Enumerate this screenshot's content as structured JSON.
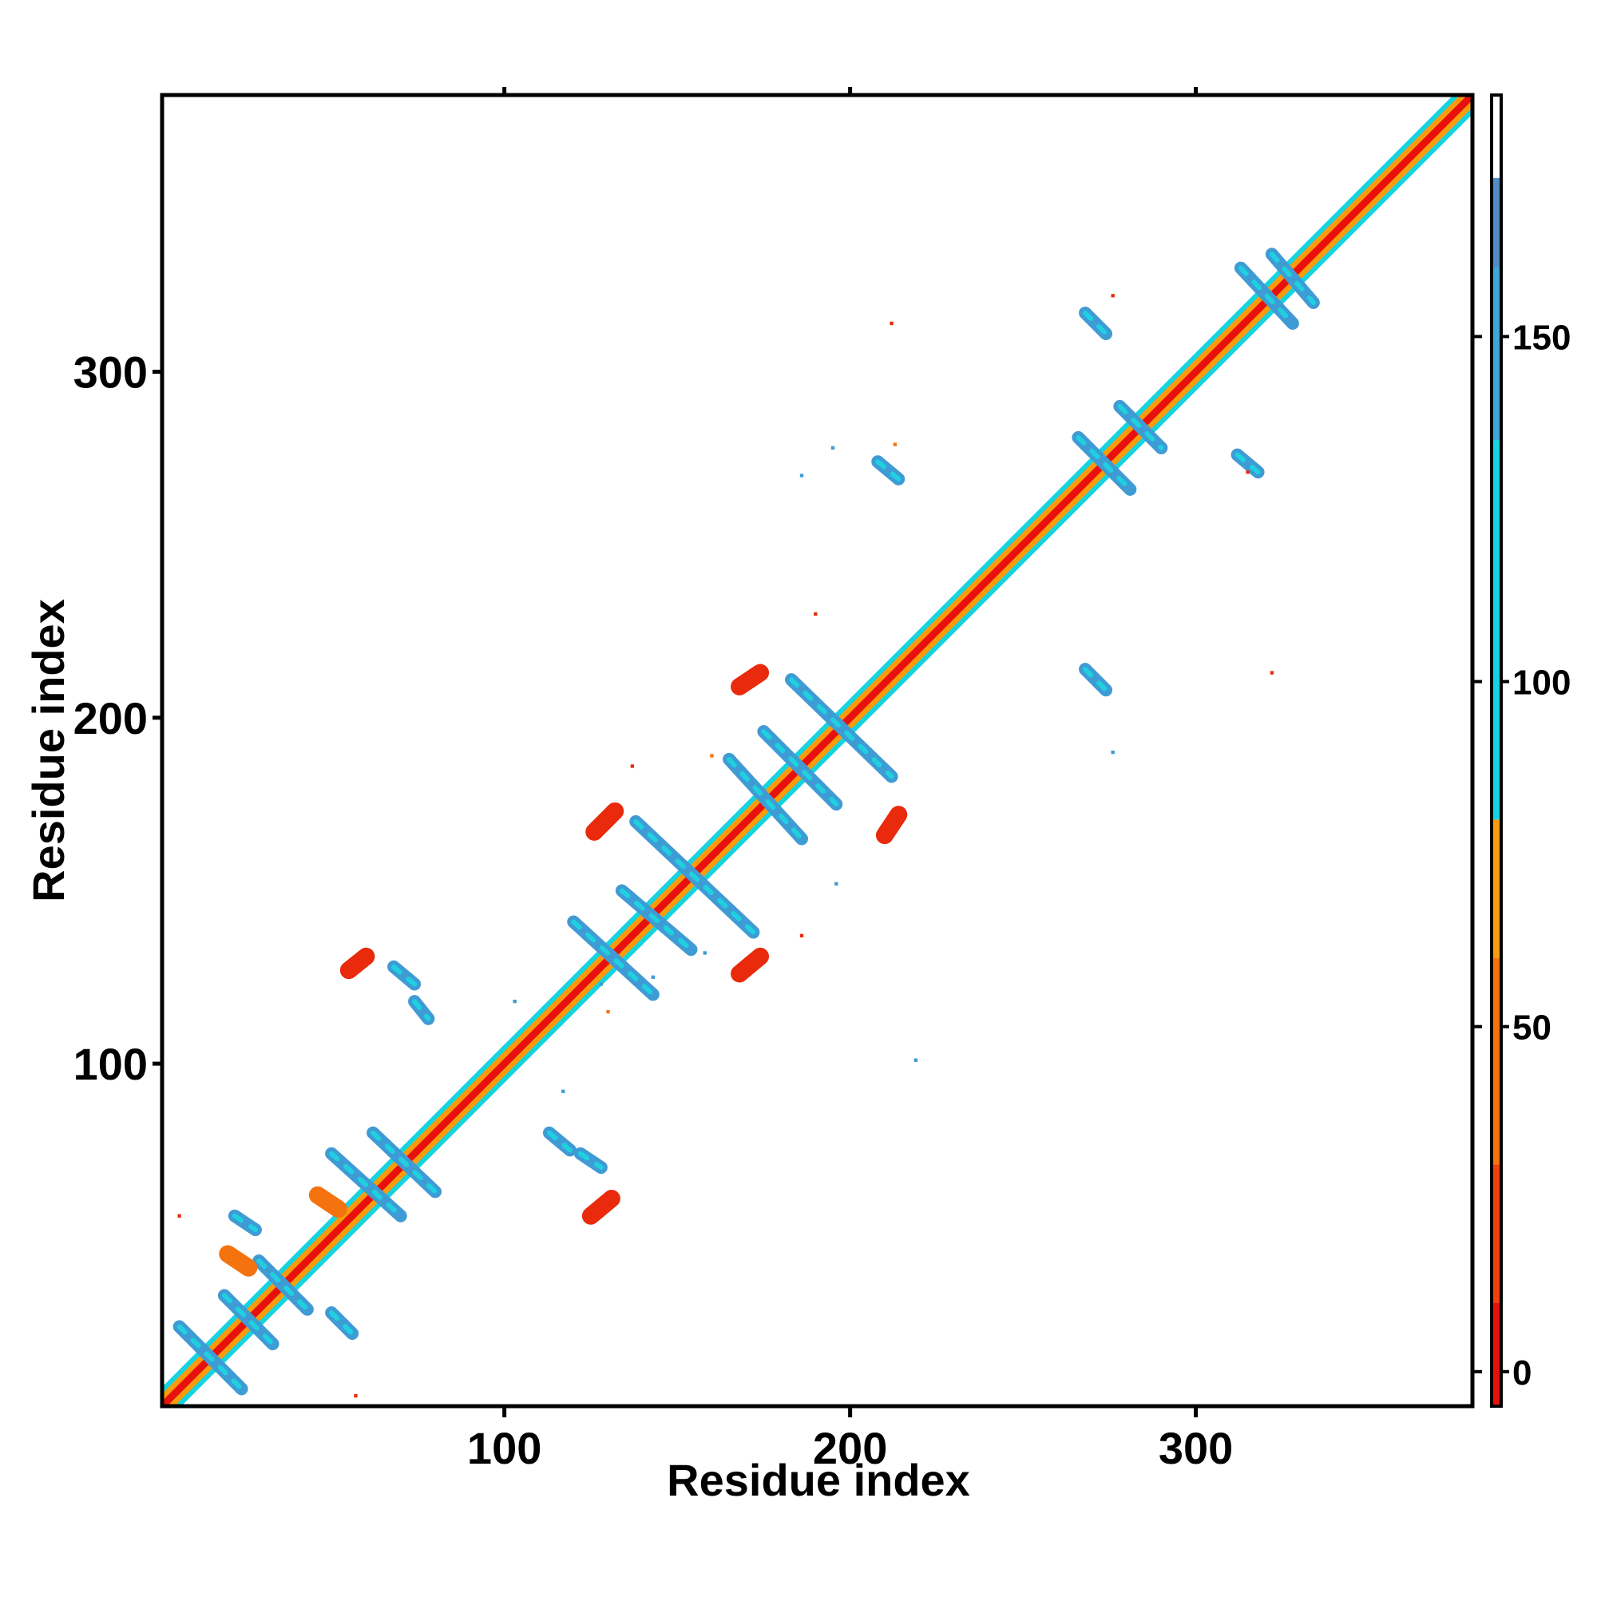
{
  "chart_data": {
    "type": "heatmap",
    "title": "",
    "xlabel": "Residue index",
    "ylabel": "Residue index",
    "xlim": [
      1,
      380
    ],
    "ylim": [
      1,
      380
    ],
    "x_ticks": [
      100,
      200,
      300
    ],
    "y_ticks": [
      100,
      200,
      300
    ],
    "grid": false,
    "legend": "right",
    "colorbar": {
      "ticks": [
        0,
        50,
        100,
        150
      ],
      "range": [
        -5,
        185
      ],
      "bands": [
        {
          "from": -5,
          "to": 10,
          "color": "#e8100d"
        },
        {
          "from": 10,
          "to": 30,
          "color": "#f2400e"
        },
        {
          "from": 30,
          "to": 60,
          "color": "#f4730f"
        },
        {
          "from": 60,
          "to": 80,
          "color": "#f99b0b"
        },
        {
          "from": 80,
          "to": 135,
          "color": "#16d3e0"
        },
        {
          "from": 135,
          "to": 160,
          "color": "#3fa6d6"
        },
        {
          "from": 160,
          "to": 173,
          "color": "#4f8dc4"
        },
        {
          "from": 173,
          "to": 185,
          "color": "#ffffff"
        }
      ]
    },
    "colors": {
      "diag_core": "#e8100d",
      "diag_edge": "#f99b0b",
      "diag_outer": "#16d3e0",
      "strand": "#3f9bd4",
      "strand_light": "#1fd0e0",
      "orange": "#f4730f",
      "red": "#e92a0c"
    },
    "segments": [
      {
        "x1": 6,
        "y1": 24,
        "x2": 24,
        "y2": 6,
        "kind": "strand"
      },
      {
        "x1": 19,
        "y1": 33,
        "x2": 33,
        "y2": 19,
        "kind": "strand"
      },
      {
        "x1": 29,
        "y1": 43,
        "x2": 43,
        "y2": 29,
        "kind": "strand"
      },
      {
        "x1": 22,
        "y1": 56,
        "x2": 28,
        "y2": 52,
        "kind": "strand"
      },
      {
        "x1": 50,
        "y1": 28,
        "x2": 56,
        "y2": 22,
        "kind": "strand"
      },
      {
        "x1": 50,
        "y1": 74,
        "x2": 70,
        "y2": 56,
        "kind": "strand"
      },
      {
        "x1": 62,
        "y1": 80,
        "x2": 80,
        "y2": 63,
        "kind": "strand"
      },
      {
        "x1": 113,
        "y1": 80,
        "x2": 119,
        "y2": 75,
        "kind": "strand"
      },
      {
        "x1": 122,
        "y1": 74,
        "x2": 128,
        "y2": 70,
        "kind": "strand"
      },
      {
        "x1": 68,
        "y1": 128,
        "x2": 74,
        "y2": 123,
        "kind": "strand"
      },
      {
        "x1": 74,
        "y1": 118,
        "x2": 78,
        "y2": 113,
        "kind": "strand"
      },
      {
        "x1": 120,
        "y1": 141,
        "x2": 143,
        "y2": 120,
        "kind": "strand"
      },
      {
        "x1": 134,
        "y1": 150,
        "x2": 154,
        "y2": 133,
        "kind": "strand"
      },
      {
        "x1": 138,
        "y1": 170,
        "x2": 172,
        "y2": 138,
        "kind": "strand"
      },
      {
        "x1": 165,
        "y1": 188,
        "x2": 186,
        "y2": 165,
        "kind": "strand"
      },
      {
        "x1": 175,
        "y1": 196,
        "x2": 196,
        "y2": 175,
        "kind": "strand"
      },
      {
        "x1": 183,
        "y1": 211,
        "x2": 212,
        "y2": 183,
        "kind": "strand"
      },
      {
        "x1": 208,
        "y1": 274,
        "x2": 214,
        "y2": 269,
        "kind": "strand"
      },
      {
        "x1": 268,
        "y1": 214,
        "x2": 274,
        "y2": 208,
        "kind": "strand"
      },
      {
        "x1": 266,
        "y1": 281,
        "x2": 281,
        "y2": 266,
        "kind": "strand"
      },
      {
        "x1": 278,
        "y1": 290,
        "x2": 290,
        "y2": 278,
        "kind": "strand"
      },
      {
        "x1": 268,
        "y1": 317,
        "x2": 274,
        "y2": 311,
        "kind": "strand"
      },
      {
        "x1": 312,
        "y1": 276,
        "x2": 318,
        "y2": 271,
        "kind": "strand"
      },
      {
        "x1": 313,
        "y1": 330,
        "x2": 328,
        "y2": 314,
        "kind": "strand"
      },
      {
        "x1": 322,
        "y1": 334,
        "x2": 334,
        "y2": 320,
        "kind": "strand"
      },
      {
        "x1": 55,
        "y1": 127,
        "x2": 60,
        "y2": 131,
        "kind": "red"
      },
      {
        "x1": 125,
        "y1": 56,
        "x2": 131,
        "y2": 61,
        "kind": "red"
      },
      {
        "x1": 126,
        "y1": 167,
        "x2": 132,
        "y2": 173,
        "kind": "red"
      },
      {
        "x1": 168,
        "y1": 126,
        "x2": 174,
        "y2": 131,
        "kind": "red"
      },
      {
        "x1": 168,
        "y1": 209,
        "x2": 174,
        "y2": 213,
        "kind": "red"
      },
      {
        "x1": 210,
        "y1": 166,
        "x2": 214,
        "y2": 172,
        "kind": "red"
      },
      {
        "x1": 20,
        "y1": 45,
        "x2": 26,
        "y2": 41,
        "kind": "orange"
      },
      {
        "x1": 46,
        "y1": 62,
        "x2": 52,
        "y2": 58,
        "kind": "orange"
      }
    ],
    "dots": [
      [
        57,
        4,
        "red"
      ],
      [
        6,
        56,
        "red"
      ],
      [
        212,
        314,
        "red"
      ],
      [
        276,
        322,
        "red"
      ],
      [
        315,
        271,
        "red"
      ],
      [
        213,
        279,
        "orange"
      ],
      [
        322,
        213,
        "red"
      ],
      [
        195,
        278,
        "strand"
      ],
      [
        276,
        190,
        "strand"
      ],
      [
        186,
        270,
        "strand"
      ],
      [
        219,
        101,
        "strand"
      ],
      [
        103,
        118,
        "strand"
      ],
      [
        117,
        92,
        "strand"
      ],
      [
        137,
        186,
        "red"
      ],
      [
        186,
        137,
        "red"
      ],
      [
        160,
        189,
        "orange"
      ],
      [
        196,
        152,
        "strand"
      ],
      [
        143,
        125,
        "strand"
      ],
      [
        128,
        123,
        "strand"
      ],
      [
        130,
        115,
        "orange"
      ],
      [
        158,
        132,
        "strand"
      ],
      [
        190,
        230,
        "red"
      ]
    ]
  }
}
